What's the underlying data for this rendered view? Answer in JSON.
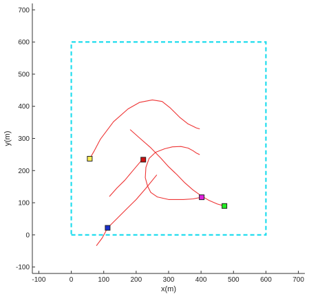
{
  "chart_data": {
    "type": "line",
    "xlabel": "x(m)",
    "ylabel": "y(m)",
    "xlim": [
      -120,
      720
    ],
    "ylim": [
      -120,
      720
    ],
    "x_ticks": [
      -100,
      0,
      100,
      200,
      300,
      400,
      500,
      600,
      700
    ],
    "y_ticks": [
      -100,
      0,
      100,
      200,
      300,
      400,
      500,
      600,
      700
    ],
    "grid": false,
    "legend": "none",
    "boundary": {
      "x": [
        0,
        600,
        600,
        0,
        0
      ],
      "y": [
        0,
        0,
        600,
        600,
        0
      ],
      "color": "#22ddee",
      "style": "dashed"
    },
    "paths": [
      {
        "color": "#ee3333",
        "x": [
          57,
          70,
          90,
          130,
          175,
          210,
          250,
          280,
          305,
          335,
          360,
          375,
          385,
          395
        ],
        "y": [
          237,
          260,
          298,
          352,
          392,
          412,
          420,
          415,
          395,
          365,
          345,
          338,
          333,
          330
        ]
      },
      {
        "color": "#ee3333",
        "x": [
          182,
          210,
          245,
          275,
          300,
          325,
          350,
          375,
          400,
          425,
          450,
          472
        ],
        "y": [
          327,
          302,
          271,
          240,
          212,
          188,
          162,
          140,
          122,
          107,
          96,
          90
        ]
      },
      {
        "color": "#ee3333",
        "x": [
          402,
          375,
          345,
          300,
          265,
          245,
          235,
          228,
          230,
          240,
          260,
          288,
          312,
          338,
          360,
          375,
          385,
          395
        ],
        "y": [
          117,
          112,
          110,
          110,
          118,
          132,
          152,
          178,
          210,
          238,
          257,
          268,
          274,
          275,
          270,
          262,
          255,
          250
        ]
      },
      {
        "color": "#ee3333",
        "x": [
          118,
          140,
          165,
          190,
          215,
          220
        ],
        "y": [
          120,
          145,
          170,
          200,
          230,
          235
        ]
      },
      {
        "color": "#ee3333",
        "x": [
          78,
          95,
          112,
          140,
          170,
          200,
          230,
          263
        ],
        "y": [
          -33,
          -10,
          22,
          50,
          80,
          110,
          145,
          186
        ]
      }
    ],
    "markers": [
      {
        "x": 57,
        "y": 237,
        "color": "#ffee55"
      },
      {
        "x": 222,
        "y": 234,
        "color": "#cc1111"
      },
      {
        "x": 402,
        "y": 117,
        "color": "#dd22dd"
      },
      {
        "x": 472,
        "y": 90,
        "color": "#22ee22"
      },
      {
        "x": 112,
        "y": 22,
        "color": "#1a2fcc"
      }
    ]
  }
}
